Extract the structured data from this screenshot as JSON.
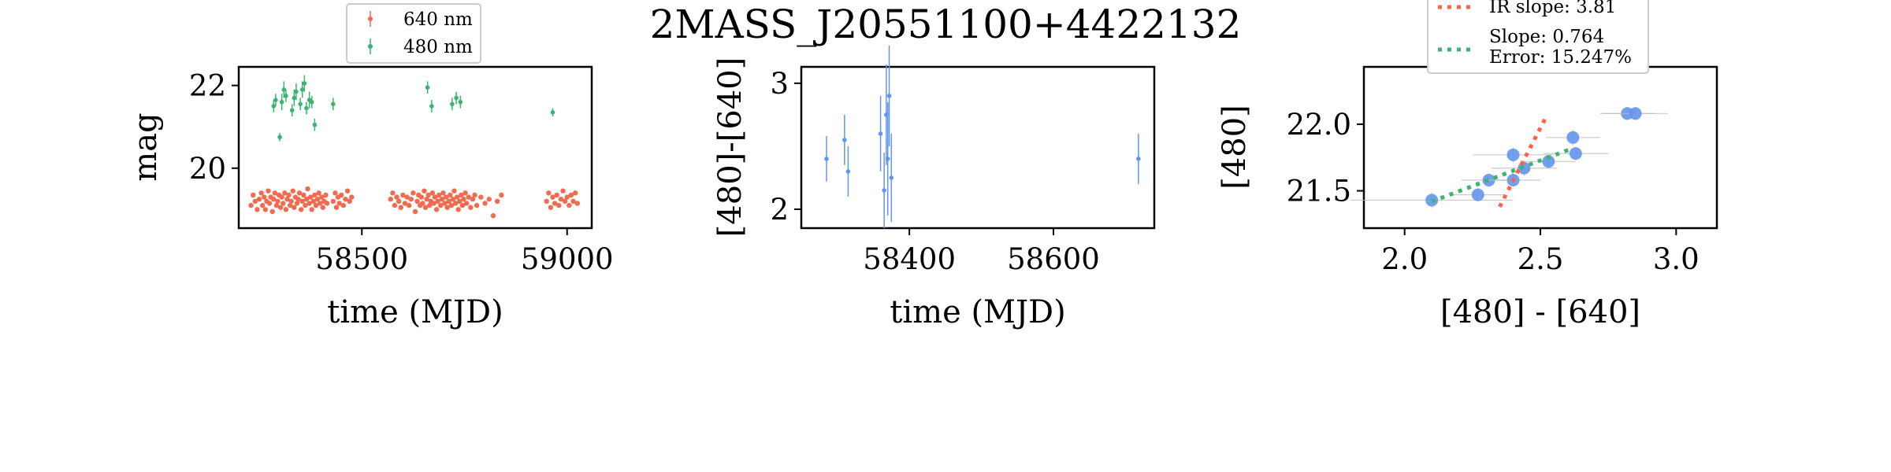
{
  "title": "2MASS_J20551100+4422132",
  "colors": {
    "red": "#f26b4f",
    "green": "#3cb371",
    "blue": "#6495ed",
    "gray": "#bdbdbd",
    "red_dash": "#ff6347",
    "green_dash": "#3cb371"
  },
  "chart_data": [
    {
      "type": "scatter",
      "xlabel": "time (MJD)",
      "ylabel": "mag",
      "xlim": [
        58200,
        59060
      ],
      "ylim": [
        22.45,
        18.55
      ],
      "y_inverted": true,
      "xticks": [
        58500,
        59000
      ],
      "yticks": [
        20,
        22
      ],
      "legend": {
        "placement": "top, above plot",
        "entries": [
          "640 nm",
          "480 nm"
        ]
      },
      "series": [
        {
          "name": "640 nm",
          "color": "red",
          "points": [
            [
              58230,
              19.1
            ],
            [
              58235,
              19.35
            ],
            [
              58240,
              19.2
            ],
            [
              58245,
              19.0
            ],
            [
              58250,
              19.25
            ],
            [
              58255,
              19.4
            ],
            [
              58258,
              19.1
            ],
            [
              58262,
              19.3
            ],
            [
              58265,
              19.0
            ],
            [
              58268,
              19.2
            ],
            [
              58272,
              19.45
            ],
            [
              58275,
              19.15
            ],
            [
              58278,
              19.3
            ],
            [
              58282,
              18.95
            ],
            [
              58285,
              19.25
            ],
            [
              58288,
              19.4
            ],
            [
              58292,
              19.1
            ],
            [
              58295,
              19.2
            ],
            [
              58298,
              19.35
            ],
            [
              58302,
              19.05
            ],
            [
              58305,
              19.3
            ],
            [
              58308,
              19.15
            ],
            [
              58312,
              19.4
            ],
            [
              58315,
              19.0
            ],
            [
              58318,
              19.25
            ],
            [
              58322,
              19.35
            ],
            [
              58325,
              19.1
            ],
            [
              58328,
              19.2
            ],
            [
              58332,
              19.45
            ],
            [
              58335,
              19.05
            ],
            [
              58338,
              19.3
            ],
            [
              58342,
              19.15
            ],
            [
              58345,
              19.25
            ],
            [
              58348,
              19.4
            ],
            [
              58352,
              19.0
            ],
            [
              58355,
              19.2
            ],
            [
              58358,
              19.35
            ],
            [
              58362,
              19.1
            ],
            [
              58365,
              19.25
            ],
            [
              58368,
              19.5
            ],
            [
              58372,
              19.15
            ],
            [
              58375,
              19.3
            ],
            [
              58378,
              19.0
            ],
            [
              58382,
              19.2
            ],
            [
              58385,
              19.35
            ],
            [
              58388,
              19.1
            ],
            [
              58392,
              19.25
            ],
            [
              58395,
              19.4
            ],
            [
              58398,
              19.15
            ],
            [
              58402,
              19.3
            ],
            [
              58405,
              19.05
            ],
            [
              58408,
              19.2
            ],
            [
              58412,
              19.35
            ],
            [
              58415,
              19.15
            ],
            [
              58430,
              19.2
            ],
            [
              58435,
              19.4
            ],
            [
              58438,
              19.05
            ],
            [
              58442,
              19.3
            ],
            [
              58445,
              19.15
            ],
            [
              58450,
              19.35
            ],
            [
              58455,
              19.1
            ],
            [
              58460,
              19.25
            ],
            [
              58465,
              19.45
            ],
            [
              58470,
              19.2
            ],
            [
              58475,
              19.3
            ],
            [
              58570,
              19.25
            ],
            [
              58575,
              19.4
            ],
            [
              58580,
              19.1
            ],
            [
              58585,
              19.3
            ],
            [
              58590,
              19.2
            ],
            [
              58595,
              19.05
            ],
            [
              58600,
              19.35
            ],
            [
              58605,
              19.15
            ],
            [
              58610,
              19.3
            ],
            [
              58615,
              19.1
            ],
            [
              58620,
              19.25
            ],
            [
              58625,
              19.4
            ],
            [
              58630,
              18.95
            ],
            [
              58635,
              19.2
            ],
            [
              58638,
              19.35
            ],
            [
              58642,
              19.1
            ],
            [
              58645,
              19.3
            ],
            [
              58648,
              19.15
            ],
            [
              58652,
              19.45
            ],
            [
              58655,
              19.05
            ],
            [
              58658,
              19.25
            ],
            [
              58662,
              19.35
            ],
            [
              58665,
              19.1
            ],
            [
              58668,
              19.2
            ],
            [
              58672,
              19.4
            ],
            [
              58675,
              19.15
            ],
            [
              58678,
              19.3
            ],
            [
              58682,
              19.0
            ],
            [
              58685,
              19.2
            ],
            [
              58688,
              19.35
            ],
            [
              58692,
              19.1
            ],
            [
              58695,
              19.25
            ],
            [
              58698,
              19.4
            ],
            [
              58702,
              19.15
            ],
            [
              58705,
              19.3
            ],
            [
              58708,
              19.05
            ],
            [
              58712,
              19.2
            ],
            [
              58715,
              19.35
            ],
            [
              58718,
              19.1
            ],
            [
              58722,
              19.25
            ],
            [
              58725,
              19.45
            ],
            [
              58728,
              19.15
            ],
            [
              58732,
              19.3
            ],
            [
              58735,
              19.0
            ],
            [
              58738,
              19.2
            ],
            [
              58742,
              19.35
            ],
            [
              58745,
              19.1
            ],
            [
              58748,
              19.25
            ],
            [
              58752,
              19.4
            ],
            [
              58755,
              19.15
            ],
            [
              58760,
              19.3
            ],
            [
              58765,
              19.05
            ],
            [
              58770,
              19.25
            ],
            [
              58775,
              19.35
            ],
            [
              58780,
              19.1
            ],
            [
              58790,
              19.3
            ],
            [
              58800,
              19.15
            ],
            [
              58810,
              19.25
            ],
            [
              58820,
              18.85
            ],
            [
              58830,
              19.2
            ],
            [
              58840,
              19.35
            ],
            [
              58950,
              19.2
            ],
            [
              58955,
              19.4
            ],
            [
              58960,
              19.05
            ],
            [
              58965,
              19.3
            ],
            [
              58970,
              19.15
            ],
            [
              58975,
              19.35
            ],
            [
              58980,
              19.1
            ],
            [
              58985,
              19.25
            ],
            [
              58990,
              19.45
            ],
            [
              58995,
              19.2
            ],
            [
              59000,
              19.3
            ],
            [
              59005,
              19.1
            ],
            [
              59010,
              19.35
            ],
            [
              59015,
              19.2
            ],
            [
              59020,
              19.4
            ],
            [
              59025,
              19.15
            ]
          ]
        },
        {
          "name": "480 nm",
          "color": "green",
          "points": [
            [
              58285,
              21.5,
              0.15
            ],
            [
              58290,
              21.65,
              0.15
            ],
            [
              58300,
              20.75,
              0.1
            ],
            [
              58305,
              21.6,
              0.2
            ],
            [
              58310,
              21.9,
              0.2
            ],
            [
              58315,
              21.75,
              0.15
            ],
            [
              58330,
              21.4,
              0.15
            ],
            [
              58335,
              21.7,
              0.2
            ],
            [
              58340,
              21.85,
              0.2
            ],
            [
              58350,
              21.55,
              0.15
            ],
            [
              58355,
              21.9,
              0.2
            ],
            [
              58360,
              22.05,
              0.2
            ],
            [
              58365,
              21.45,
              0.15
            ],
            [
              58372,
              21.65,
              0.2
            ],
            [
              58378,
              21.6,
              0.15
            ],
            [
              58385,
              21.05,
              0.15
            ],
            [
              58430,
              21.55,
              0.15
            ],
            [
              58660,
              21.95,
              0.15
            ],
            [
              58670,
              21.5,
              0.15
            ],
            [
              58720,
              21.55,
              0.15
            ],
            [
              58730,
              21.7,
              0.15
            ],
            [
              58740,
              21.6,
              0.15
            ],
            [
              58965,
              21.35,
              0.1
            ]
          ]
        }
      ]
    },
    {
      "type": "scatter",
      "xlabel": "time (MJD)",
      "ylabel": "[480]-[640]",
      "xlim": [
        58250,
        58740
      ],
      "ylim": [
        3.13,
        1.85
      ],
      "y_inverted": true,
      "xticks": [
        58400,
        58600
      ],
      "yticks": [
        2,
        3
      ],
      "series": [
        {
          "name": "",
          "color": "blue",
          "points": [
            [
              58285,
              2.4,
              0.18
            ],
            [
              58310,
              2.55,
              0.2
            ],
            [
              58315,
              2.3,
              0.2
            ],
            [
              58360,
              2.6,
              0.3
            ],
            [
              58365,
              2.15,
              0.3
            ],
            [
              58368,
              2.75,
              0.4
            ],
            [
              58370,
              2.4,
              0.45
            ],
            [
              58372,
              2.9,
              0.4
            ],
            [
              58375,
              2.25,
              0.35
            ],
            [
              58718,
              2.4,
              0.2
            ]
          ]
        }
      ]
    },
    {
      "type": "scatter",
      "xlabel": "[480] - [640]",
      "ylabel": "[480]",
      "xlim": [
        1.85,
        3.15
      ],
      "ylim": [
        22.43,
        21.22
      ],
      "y_inverted": true,
      "xticks": [
        2.0,
        2.5,
        3.0
      ],
      "yticks": [
        21.5,
        22.0
      ],
      "legend": {
        "placement": "top, above plot",
        "entries": [
          "IR slope: 3.81",
          "Slope: 0.764",
          "Error: 15.247%"
        ]
      },
      "series": [
        {
          "name": "",
          "color": "blue",
          "points": [
            [
              2.1,
              21.43,
              0.3,
              0.06
            ],
            [
              2.27,
              21.47,
              0.1,
              0.05
            ],
            [
              2.31,
              21.58,
              0.1,
              0.05
            ],
            [
              2.4,
              21.58,
              0.1,
              0.05
            ],
            [
              2.44,
              21.67,
              0.12,
              0.06
            ],
            [
              2.4,
              21.77,
              0.15,
              0.06
            ],
            [
              2.53,
              21.72,
              0.1,
              0.05
            ],
            [
              2.62,
              21.9,
              0.1,
              0.06
            ],
            [
              2.63,
              21.78,
              0.12,
              0.05
            ],
            [
              2.82,
              22.08,
              0.1,
              0.05
            ],
            [
              2.85,
              22.08,
              0.12,
              0.05
            ]
          ]
        }
      ],
      "fit_lines": [
        {
          "label": "IR slope: 3.81",
          "color": "red_dash",
          "x": [
            2.35,
            2.52
          ],
          "y": [
            21.38,
            22.05
          ]
        },
        {
          "label": "Slope: 0.764",
          "color": "green_dash",
          "x": [
            2.1,
            2.62
          ],
          "y": [
            21.42,
            21.82
          ]
        }
      ]
    }
  ]
}
